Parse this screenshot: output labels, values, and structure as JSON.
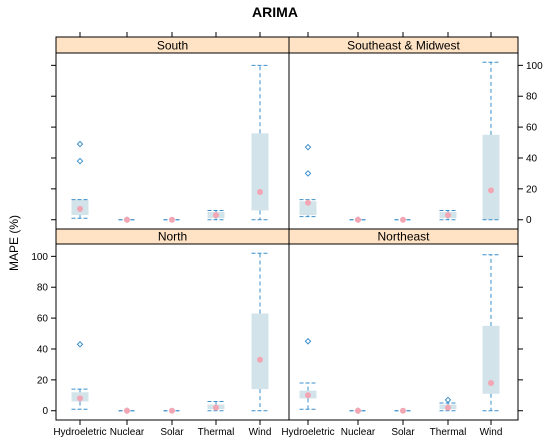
{
  "chart_data": {
    "type": "box",
    "title": "ARIMA",
    "ylabel": "MAPE (%)",
    "ylim": [
      -6,
      108
    ],
    "yticks": [
      0,
      20,
      40,
      60,
      80,
      100
    ],
    "categories": [
      "Hydroeletric",
      "Nuclear",
      "Solar",
      "Thermal",
      "Wind"
    ],
    "colors": {
      "box_fill": "#d2e3ea",
      "whisker": "#3b8fcc",
      "median_dot": "#f2a6b4",
      "outlier": "#3b8fcc",
      "strip": "#ffe3c4"
    },
    "panels": [
      {
        "name": "South",
        "boxes": [
          {
            "category": "Hydroeletric",
            "min": 1,
            "q1": 3,
            "median": 7,
            "q3": 13,
            "max": 13,
            "outliers": [
              38,
              49
            ]
          },
          {
            "category": "Nuclear",
            "min": 0,
            "q1": 0,
            "median": 0,
            "q3": 0,
            "max": 0,
            "outliers": [
              0
            ]
          },
          {
            "category": "Solar",
            "min": 0,
            "q1": 0,
            "median": 0,
            "q3": 0,
            "max": 0,
            "outliers": []
          },
          {
            "category": "Thermal",
            "min": 0,
            "q1": 1,
            "median": 3,
            "q3": 5,
            "max": 6,
            "outliers": []
          },
          {
            "category": "Wind",
            "min": 0,
            "q1": 6,
            "median": 18,
            "q3": 56,
            "max": 100,
            "outliers": []
          }
        ]
      },
      {
        "name": "Southeast & Midwest",
        "boxes": [
          {
            "category": "Hydroeletric",
            "min": 2,
            "q1": 3,
            "median": 11,
            "q3": 12,
            "max": 13,
            "outliers": [
              30,
              47
            ]
          },
          {
            "category": "Nuclear",
            "min": 0,
            "q1": 0,
            "median": 0,
            "q3": 0,
            "max": 0,
            "outliers": [
              0
            ]
          },
          {
            "category": "Solar",
            "min": 0,
            "q1": 0,
            "median": 0,
            "q3": 0,
            "max": 0,
            "outliers": []
          },
          {
            "category": "Thermal",
            "min": 0,
            "q1": 1,
            "median": 3,
            "q3": 5,
            "max": 6,
            "outliers": []
          },
          {
            "category": "Wind",
            "min": 0,
            "q1": 0,
            "median": 19,
            "q3": 55,
            "max": 102,
            "outliers": []
          }
        ]
      },
      {
        "name": "North",
        "boxes": [
          {
            "category": "Hydroeletric",
            "min": 1,
            "q1": 6,
            "median": 8,
            "q3": 12,
            "max": 14,
            "outliers": [
              43
            ]
          },
          {
            "category": "Nuclear",
            "min": 0,
            "q1": 0,
            "median": 0,
            "q3": 0,
            "max": 0,
            "outliers": [
              0
            ]
          },
          {
            "category": "Solar",
            "min": 0,
            "q1": 0,
            "median": 0,
            "q3": 0,
            "max": 0,
            "outliers": []
          },
          {
            "category": "Thermal",
            "min": 0,
            "q1": 1,
            "median": 2,
            "q3": 4,
            "max": 6,
            "outliers": []
          },
          {
            "category": "Wind",
            "min": 0,
            "q1": 14,
            "median": 33,
            "q3": 63,
            "max": 102,
            "outliers": []
          }
        ]
      },
      {
        "name": "Northeast",
        "boxes": [
          {
            "category": "Hydroeletric",
            "min": 1,
            "q1": 8,
            "median": 10,
            "q3": 13,
            "max": 18,
            "outliers": [
              45
            ]
          },
          {
            "category": "Nuclear",
            "min": 0,
            "q1": 0,
            "median": 0,
            "q3": 0,
            "max": 0,
            "outliers": [
              0
            ]
          },
          {
            "category": "Solar",
            "min": 0,
            "q1": 0,
            "median": 0,
            "q3": 0,
            "max": 0,
            "outliers": []
          },
          {
            "category": "Thermal",
            "min": 0,
            "q1": 1,
            "median": 2,
            "q3": 4,
            "max": 5,
            "outliers": [
              7
            ]
          },
          {
            "category": "Wind",
            "min": 0,
            "q1": 11,
            "median": 18,
            "q3": 55,
            "max": 101,
            "outliers": []
          }
        ]
      }
    ]
  }
}
